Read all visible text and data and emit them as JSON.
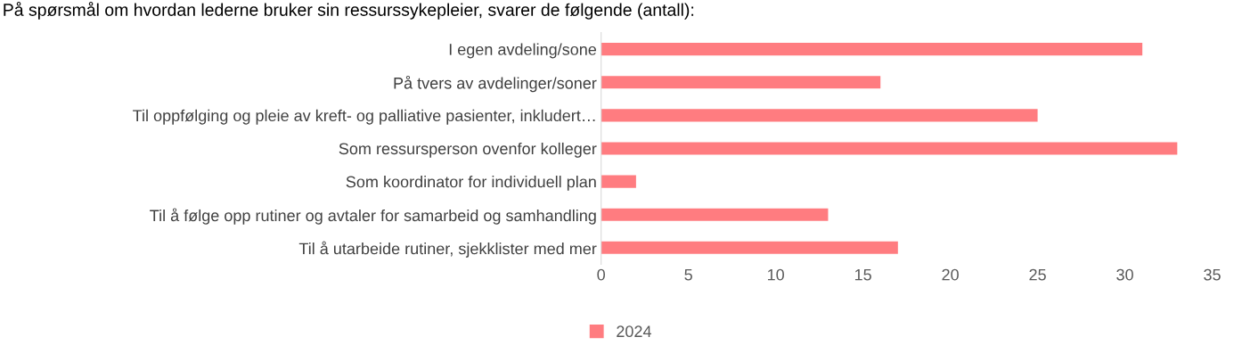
{
  "chart_data": {
    "type": "bar",
    "orientation": "horizontal",
    "title": "På spørsmål om hvordan lederne bruker sin ressurssykepleier, svarer de følgende (antall):",
    "categories": [
      "I egen avdeling/sone",
      "På tvers av avdelinger/soner",
      "Til oppfølging og pleie av kreft- og palliative pasienter, inkludert…",
      "Som ressursperson ovenfor kolleger",
      "Som koordinator for individuell plan",
      "Til å følge opp rutiner og avtaler for samarbeid og samhandling",
      "Til å utarbeide rutiner, sjekklister med mer"
    ],
    "series": [
      {
        "name": "2024",
        "color": "#ff7c80",
        "values": [
          31,
          16,
          25,
          33,
          2,
          13,
          17
        ]
      }
    ],
    "xlim": [
      0,
      35
    ],
    "xticks": [
      0,
      5,
      10,
      15,
      20,
      25,
      30,
      35
    ],
    "grid": false,
    "legend": "bottom"
  }
}
